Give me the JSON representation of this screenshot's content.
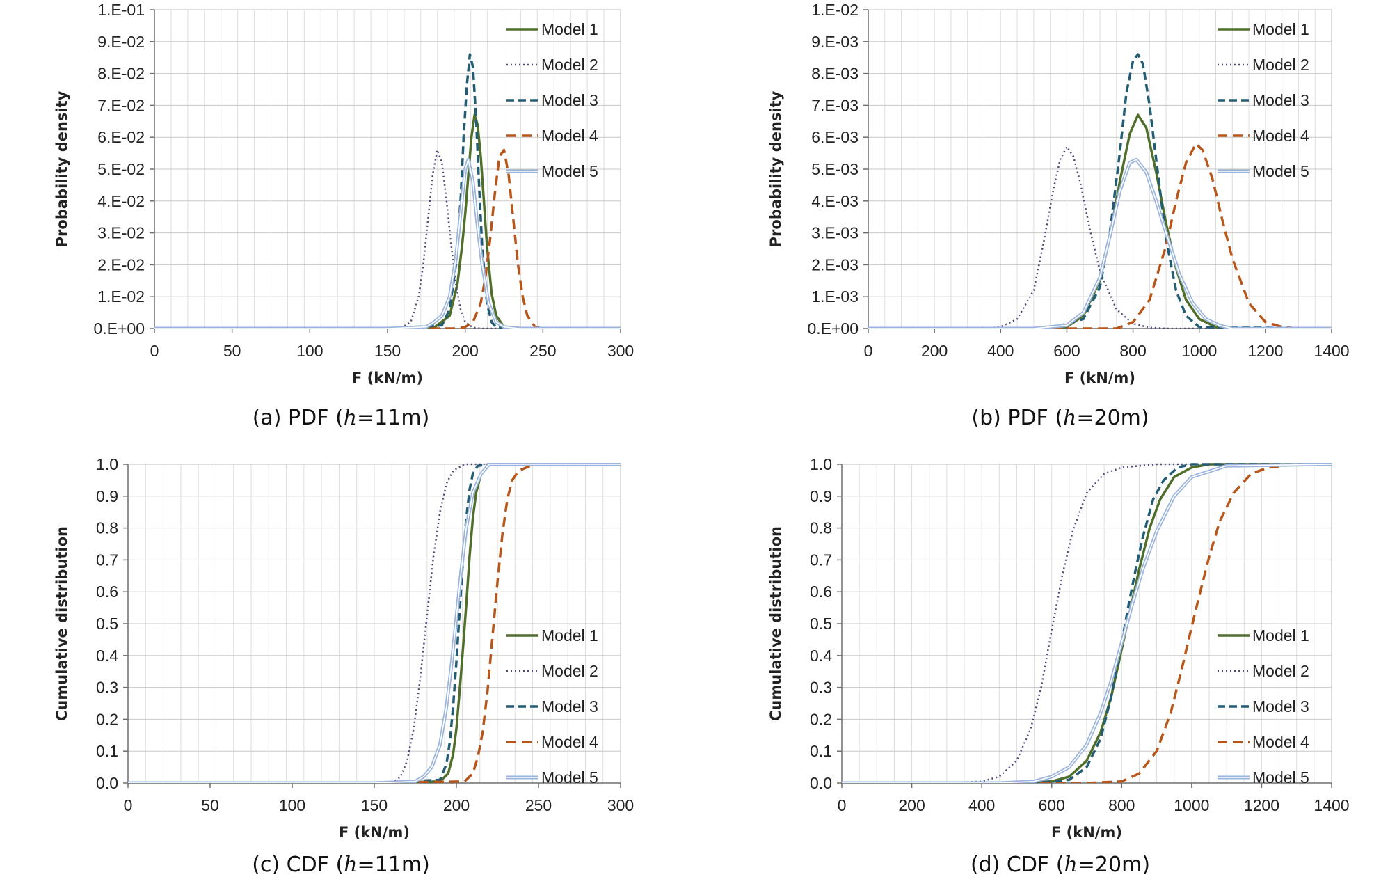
{
  "series_styles": {
    "Model 1": {
      "color": "#4f6f2a",
      "dash": "",
      "width": 3.5
    },
    "Model 2": {
      "color": "#4b4a7a",
      "dash": "2,4",
      "width": 2.5
    },
    "Model 3": {
      "color": "#235d73",
      "dash": "11,6",
      "width": 3.5
    },
    "Model 4": {
      "color": "#b8561a",
      "dash": "14,8",
      "width": 3.5
    },
    "Model 5": {
      "color": "#9ab4dd",
      "dash": "",
      "width": 5,
      "double": true
    }
  },
  "chart_data": [
    {
      "type": "line",
      "caption": {
        "before": "(a)  PDF  (",
        "italic": "h",
        "after": "=11m)"
      },
      "xlabel": "F (kN/m)",
      "ylabel": "Probability density",
      "xlim": [
        0,
        300
      ],
      "ylim": [
        0,
        0.1
      ],
      "xticks": [
        0,
        50,
        100,
        150,
        200,
        250,
        300
      ],
      "xtick_labels": [
        "0",
        "50",
        "100",
        "150",
        "200",
        "250",
        "300"
      ],
      "yticks": [
        0,
        0.01,
        0.02,
        0.03,
        0.04,
        0.05,
        0.06,
        0.07,
        0.08,
        0.09,
        0.1
      ],
      "ytick_labels": [
        "0.E+00",
        "1.E-02",
        "2.E-02",
        "3.E-02",
        "4.E-02",
        "5.E-02",
        "6.E-02",
        "7.E-02",
        "8.E-02",
        "9.E-02",
        "1.E-01"
      ],
      "grid": true,
      "legend_position": "top-right",
      "series": [
        {
          "name": "Model 1",
          "x": [
            0,
            150,
            180,
            190,
            195,
            198,
            200,
            202,
            204,
            206,
            208,
            210,
            212,
            214,
            217,
            220,
            225,
            240,
            300
          ],
          "y": [
            0,
            0,
            0.0003,
            0.004,
            0.014,
            0.026,
            0.036,
            0.048,
            0.06,
            0.067,
            0.064,
            0.054,
            0.04,
            0.026,
            0.011,
            0.004,
            0.0005,
            0,
            0
          ]
        },
        {
          "name": "Model 2",
          "x": [
            0,
            150,
            160,
            165,
            170,
            173,
            176,
            179,
            182,
            185,
            188,
            191,
            194,
            197,
            200,
            205,
            210,
            220,
            300
          ],
          "y": [
            0,
            0,
            0.0005,
            0.002,
            0.01,
            0.02,
            0.034,
            0.048,
            0.056,
            0.052,
            0.04,
            0.026,
            0.014,
            0.006,
            0.002,
            0.0003,
            0,
            0,
            0
          ]
        },
        {
          "name": "Model 3",
          "x": [
            0,
            150,
            185,
            190,
            194,
            197,
            199,
            201,
            203,
            205,
            207,
            209,
            211,
            214,
            217,
            220,
            230,
            300
          ],
          "y": [
            0,
            0,
            0.001,
            0.006,
            0.02,
            0.04,
            0.06,
            0.076,
            0.086,
            0.082,
            0.066,
            0.044,
            0.025,
            0.008,
            0.002,
            0.0004,
            0,
            0
          ]
        },
        {
          "name": "Model 4",
          "x": [
            0,
            150,
            195,
            200,
            205,
            210,
            213,
            216,
            219,
            222,
            225,
            228,
            231,
            234,
            237,
            240,
            245,
            250,
            300
          ],
          "y": [
            0,
            0,
            0,
            0.0005,
            0.002,
            0.008,
            0.016,
            0.028,
            0.042,
            0.054,
            0.056,
            0.048,
            0.034,
            0.02,
            0.01,
            0.004,
            0.0005,
            0,
            0
          ]
        },
        {
          "name": "Model 5",
          "x": [
            0,
            150,
            175,
            180,
            185,
            190,
            194,
            197,
            200,
            202,
            205,
            208,
            211,
            215,
            220,
            225,
            235,
            300
          ],
          "y": [
            0,
            0,
            0.0005,
            0.002,
            0.004,
            0.01,
            0.022,
            0.036,
            0.05,
            0.053,
            0.046,
            0.032,
            0.02,
            0.008,
            0.002,
            0.0005,
            0,
            0
          ]
        }
      ]
    },
    {
      "type": "line",
      "caption": {
        "before": "(b)  PDF  (",
        "italic": "h",
        "after": "=20m)"
      },
      "xlabel": "F (kN/m)",
      "ylabel": "Probability density",
      "xlim": [
        0,
        1400
      ],
      "ylim": [
        0,
        0.01
      ],
      "xticks": [
        0,
        200,
        400,
        600,
        800,
        1000,
        1200,
        1400
      ],
      "xtick_labels": [
        "0",
        "200",
        "400",
        "600",
        "800",
        "1000",
        "1200",
        "1400"
      ],
      "yticks": [
        0,
        0.001,
        0.002,
        0.003,
        0.004,
        0.005,
        0.006,
        0.007,
        0.008,
        0.009,
        0.01
      ],
      "ytick_labels": [
        "0.E+00",
        "1.E-03",
        "2.E-03",
        "3.E-03",
        "4.E-03",
        "5.E-03",
        "6.E-03",
        "7.E-03",
        "8.E-03",
        "9.E-03",
        "1.E-02"
      ],
      "grid": true,
      "legend_position": "top-right",
      "series": [
        {
          "name": "Model 1",
          "x": [
            0,
            500,
            600,
            650,
            700,
            730,
            760,
            790,
            815,
            840,
            870,
            900,
            930,
            960,
            1000,
            1050,
            1100,
            1400
          ],
          "y": [
            0,
            0,
            5e-05,
            0.0004,
            0.0015,
            0.0029,
            0.0046,
            0.0061,
            0.0067,
            0.0063,
            0.0049,
            0.0033,
            0.0019,
            0.0009,
            0.0003,
            5e-05,
            0,
            0
          ]
        },
        {
          "name": "Model 2",
          "x": [
            0,
            350,
            400,
            450,
            500,
            530,
            560,
            580,
            600,
            620,
            640,
            670,
            700,
            750,
            800,
            850,
            900,
            1400
          ],
          "y": [
            0,
            0,
            5e-05,
            0.0003,
            0.0012,
            0.0027,
            0.0044,
            0.0053,
            0.0057,
            0.0054,
            0.0046,
            0.0031,
            0.0018,
            0.0006,
            0.00015,
            3e-05,
            0,
            0
          ]
        },
        {
          "name": "Model 3",
          "x": [
            0,
            550,
            650,
            700,
            730,
            760,
            780,
            800,
            815,
            830,
            850,
            870,
            900,
            930,
            960,
            1000,
            1400
          ],
          "y": [
            0,
            0,
            0.0003,
            0.0013,
            0.003,
            0.0055,
            0.0074,
            0.0084,
            0.0086,
            0.0083,
            0.007,
            0.0053,
            0.0028,
            0.0012,
            0.0004,
            5e-05,
            0
          ]
        },
        {
          "name": "Model 4",
          "x": [
            0,
            750,
            800,
            850,
            900,
            930,
            960,
            990,
            1010,
            1040,
            1070,
            1100,
            1150,
            1200,
            1250,
            1300,
            1400
          ],
          "y": [
            0,
            0,
            0.0002,
            0.0009,
            0.0026,
            0.004,
            0.0052,
            0.0058,
            0.0056,
            0.0047,
            0.0034,
            0.0022,
            0.0008,
            0.0002,
            5e-05,
            0,
            0
          ]
        },
        {
          "name": "Model 5",
          "x": [
            0,
            500,
            600,
            650,
            700,
            730,
            760,
            790,
            810,
            840,
            870,
            900,
            940,
            980,
            1020,
            1060,
            1100,
            1400
          ],
          "y": [
            0,
            0,
            0.0001,
            0.0005,
            0.0016,
            0.0029,
            0.0043,
            0.0052,
            0.0053,
            0.0049,
            0.004,
            0.003,
            0.0017,
            0.0008,
            0.0003,
            0.0001,
            0,
            0
          ]
        }
      ]
    },
    {
      "type": "line",
      "caption": {
        "before": "(c)  CDF  (",
        "italic": "h",
        "after": "=11m)"
      },
      "xlabel": "F (kN/m)",
      "ylabel": "Cumulative distribution",
      "xlim": [
        0,
        300
      ],
      "ylim": [
        0,
        1
      ],
      "xticks": [
        0,
        50,
        100,
        150,
        200,
        250,
        300
      ],
      "xtick_labels": [
        "0",
        "50",
        "100",
        "150",
        "200",
        "250",
        "300"
      ],
      "yticks": [
        0,
        0.1,
        0.2,
        0.3,
        0.4,
        0.5,
        0.6,
        0.7,
        0.8,
        0.9,
        1
      ],
      "ytick_labels": [
        "0.0",
        "0.1",
        "0.2",
        "0.3",
        "0.4",
        "0.5",
        "0.6",
        "0.7",
        "0.8",
        "0.9",
        "1.0"
      ],
      "grid": true,
      "legend_position": "bottom-right",
      "series": [
        {
          "name": "Model 1",
          "x": [
            0,
            150,
            190,
            195,
            198,
            200,
            202,
            204,
            206,
            208,
            210,
            212,
            215,
            220,
            300
          ],
          "y": [
            0,
            0,
            0.005,
            0.03,
            0.09,
            0.17,
            0.29,
            0.42,
            0.56,
            0.71,
            0.83,
            0.91,
            0.97,
            1,
            1
          ]
        },
        {
          "name": "Model 2",
          "x": [
            0,
            150,
            162,
            166,
            170,
            174,
            178,
            182,
            186,
            190,
            194,
            198,
            205,
            300
          ],
          "y": [
            0,
            0,
            0.005,
            0.02,
            0.07,
            0.17,
            0.33,
            0.52,
            0.71,
            0.85,
            0.94,
            0.98,
            1,
            1
          ]
        },
        {
          "name": "Model 3",
          "x": [
            0,
            150,
            190,
            194,
            196,
            198,
            200,
            202,
            204,
            206,
            208,
            210,
            213,
            220,
            300
          ],
          "y": [
            0,
            0,
            0.01,
            0.06,
            0.13,
            0.24,
            0.38,
            0.54,
            0.7,
            0.83,
            0.92,
            0.97,
            0.995,
            1,
            1
          ]
        },
        {
          "name": "Model 4",
          "x": [
            0,
            150,
            205,
            210,
            213,
            216,
            219,
            222,
            225,
            228,
            231,
            234,
            238,
            245,
            250,
            300
          ],
          "y": [
            0,
            0,
            0.005,
            0.03,
            0.08,
            0.16,
            0.29,
            0.46,
            0.63,
            0.78,
            0.89,
            0.95,
            0.98,
            0.995,
            1,
            1
          ]
        },
        {
          "name": "Model 5",
          "x": [
            0,
            150,
            175,
            180,
            185,
            190,
            194,
            197,
            200,
            203,
            206,
            210,
            215,
            220,
            300
          ],
          "y": [
            0,
            0,
            0.005,
            0.02,
            0.05,
            0.12,
            0.24,
            0.37,
            0.52,
            0.67,
            0.8,
            0.91,
            0.97,
            1,
            1
          ]
        }
      ]
    },
    {
      "type": "line",
      "caption": {
        "before": "(d)  CDF  (",
        "italic": "h",
        "after": "=20m)"
      },
      "xlabel": "F (kN/m)",
      "ylabel": "Cumulative distribution",
      "xlim": [
        0,
        1400
      ],
      "ylim": [
        0,
        1
      ],
      "xticks": [
        0,
        200,
        400,
        600,
        800,
        1000,
        1200,
        1400
      ],
      "xtick_labels": [
        "0",
        "200",
        "400",
        "600",
        "800",
        "1000",
        "1200",
        "1400"
      ],
      "yticks": [
        0,
        0.1,
        0.2,
        0.3,
        0.4,
        0.5,
        0.6,
        0.7,
        0.8,
        0.9,
        1
      ],
      "ytick_labels": [
        "0.0",
        "0.1",
        "0.2",
        "0.3",
        "0.4",
        "0.5",
        "0.6",
        "0.7",
        "0.8",
        "0.9",
        "1.0"
      ],
      "grid": true,
      "legend_position": "bottom-right",
      "series": [
        {
          "name": "Model 1",
          "x": [
            0,
            500,
            600,
            650,
            700,
            740,
            770,
            800,
            820,
            850,
            880,
            910,
            950,
            1000,
            1050,
            1400
          ],
          "y": [
            0,
            0,
            0.005,
            0.02,
            0.07,
            0.16,
            0.27,
            0.42,
            0.52,
            0.67,
            0.8,
            0.89,
            0.96,
            0.99,
            1,
            1
          ]
        },
        {
          "name": "Model 2",
          "x": [
            0,
            300,
            400,
            450,
            500,
            540,
            570,
            600,
            630,
            660,
            700,
            750,
            800,
            900,
            1400
          ],
          "y": [
            0,
            0,
            0.005,
            0.02,
            0.07,
            0.17,
            0.3,
            0.48,
            0.65,
            0.79,
            0.91,
            0.97,
            0.99,
            1,
            1
          ]
        },
        {
          "name": "Model 3",
          "x": [
            0,
            550,
            650,
            700,
            740,
            770,
            800,
            820,
            840,
            860,
            890,
            920,
            960,
            1000,
            1400
          ],
          "y": [
            0,
            0,
            0.01,
            0.05,
            0.14,
            0.27,
            0.44,
            0.56,
            0.67,
            0.77,
            0.89,
            0.95,
            0.99,
            1,
            1
          ]
        },
        {
          "name": "Model 4",
          "x": [
            0,
            700,
            800,
            850,
            900,
            940,
            970,
            1000,
            1020,
            1050,
            1080,
            1120,
            1170,
            1220,
            1300,
            1400
          ],
          "y": [
            0,
            0,
            0.005,
            0.03,
            0.1,
            0.22,
            0.35,
            0.49,
            0.58,
            0.71,
            0.82,
            0.91,
            0.97,
            0.99,
            1,
            1
          ]
        },
        {
          "name": "Model 5",
          "x": [
            0,
            450,
            550,
            600,
            650,
            700,
            740,
            770,
            800,
            830,
            860,
            900,
            950,
            1000,
            1100,
            1400
          ],
          "y": [
            0,
            0,
            0.005,
            0.02,
            0.05,
            0.12,
            0.22,
            0.32,
            0.44,
            0.56,
            0.67,
            0.79,
            0.9,
            0.96,
            0.995,
            1
          ]
        }
      ]
    }
  ]
}
